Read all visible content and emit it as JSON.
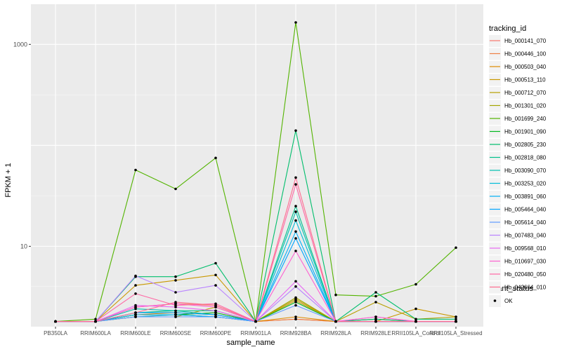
{
  "chart_data": {
    "type": "line",
    "title": "",
    "xlabel": "sample_name",
    "ylabel": "FPKM + 1",
    "yscale": "log10",
    "ylim": [
      1.6,
      2500
    ],
    "y_ticks": [
      10,
      1000
    ],
    "y_tick_labels": [
      "10",
      "1000"
    ],
    "grid": true,
    "background": "#ebebeb",
    "categories": [
      "PB350LA",
      "RRIM600LA",
      "RRIM600LE",
      "RRIM600SE",
      "RRIM600PE",
      "RRIM901LA",
      "RRIM928BA",
      "RRIM928LA",
      "RRIM928LE",
      "RRII105LA_Control",
      "RRII105LA_Stressed"
    ],
    "legend": {
      "position": "right",
      "title": "tracking_id",
      "status_title": "quant_status",
      "status_entries": [
        "OK"
      ]
    },
    "series": [
      {
        "name": "Hb_000141_070",
        "color": "#F8766D",
        "values": [
          1.8,
          1.8,
          2.0,
          2.1,
          2.2,
          1.8,
          1.9,
          1.8,
          1.9,
          1.8,
          1.8
        ]
      },
      {
        "name": "Hb_000446_100",
        "color": "#EE8043",
        "values": [
          1.8,
          1.8,
          2.5,
          2.7,
          2.6,
          1.8,
          1.9,
          1.8,
          1.8,
          1.8,
          1.8
        ]
      },
      {
        "name": "Hb_000503_040",
        "color": "#DE8C00",
        "values": [
          1.8,
          1.8,
          2.1,
          2.2,
          2.1,
          1.8,
          2.0,
          1.8,
          1.9,
          1.8,
          1.8
        ]
      },
      {
        "name": "Hb_000513_110",
        "color": "#C99800",
        "values": [
          1.8,
          1.8,
          4.1,
          4.6,
          5.2,
          1.8,
          2.9,
          1.8,
          1.8,
          2.4,
          2.0
        ]
      },
      {
        "name": "Hb_000712_070",
        "color": "#B79F00",
        "values": [
          1.8,
          1.8,
          2.0,
          2.0,
          2.5,
          1.8,
          3.0,
          1.8,
          2.8,
          1.9,
          2.0
        ]
      },
      {
        "name": "Hb_001301_020",
        "color": "#A3A500",
        "values": [
          1.8,
          1.8,
          2.1,
          2.1,
          2.0,
          1.8,
          3.1,
          1.8,
          1.9,
          1.8,
          1.8
        ]
      },
      {
        "name": "Hb_001699_240",
        "color": "#53B400",
        "values": [
          1.8,
          1.9,
          57,
          37,
          75,
          1.8,
          1650,
          3.3,
          3.2,
          4.2,
          9.7
        ]
      },
      {
        "name": "Hb_001901_090",
        "color": "#00B81F",
        "values": [
          1.8,
          1.8,
          2.1,
          2.1,
          2.2,
          1.8,
          2.8,
          1.8,
          1.8,
          1.8,
          1.8
        ]
      },
      {
        "name": "Hb_002805_230",
        "color": "#00BE6C",
        "values": [
          1.8,
          1.8,
          5.0,
          5.0,
          6.8,
          1.8,
          140,
          1.8,
          3.5,
          1.9,
          1.9
        ]
      },
      {
        "name": "Hb_002818_080",
        "color": "#00C08B",
        "values": [
          1.8,
          1.8,
          2.2,
          2.3,
          2.3,
          1.8,
          25,
          1.8,
          1.9,
          1.8,
          1.8
        ]
      },
      {
        "name": "Hb_003090_070",
        "color": "#00C0AF",
        "values": [
          1.8,
          1.8,
          2.4,
          2.3,
          2.1,
          1.8,
          22,
          1.8,
          1.8,
          1.8,
          1.8
        ]
      },
      {
        "name": "Hb_003253_020",
        "color": "#00BCD8",
        "values": [
          1.8,
          1.8,
          2.0,
          2.1,
          2.0,
          1.8,
          18,
          1.8,
          1.8,
          1.8,
          1.8
        ]
      },
      {
        "name": "Hb_003891_060",
        "color": "#00B0F6",
        "values": [
          1.8,
          1.8,
          2.1,
          2.1,
          2.0,
          1.8,
          14,
          1.8,
          1.8,
          1.8,
          1.8
        ]
      },
      {
        "name": "Hb_005464_040",
        "color": "#00A5FF",
        "values": [
          1.8,
          1.8,
          2.2,
          2.2,
          2.1,
          1.8,
          12,
          1.8,
          1.8,
          1.8,
          1.8
        ]
      },
      {
        "name": "Hb_005614_040",
        "color": "#619CFF",
        "values": [
          1.8,
          1.8,
          2.0,
          2.0,
          2.0,
          1.8,
          2.6,
          1.8,
          1.8,
          1.8,
          1.8
        ]
      },
      {
        "name": "Hb_007483_040",
        "color": "#B983FF",
        "values": [
          1.8,
          1.8,
          5.1,
          3.5,
          4.1,
          1.8,
          4.0,
          1.8,
          1.8,
          1.8,
          1.8
        ]
      },
      {
        "name": "Hb_009568_010",
        "color": "#E76BF3",
        "values": [
          1.8,
          1.8,
          2.6,
          2.5,
          2.3,
          1.8,
          4.5,
          1.8,
          2.0,
          1.8,
          1.8
        ]
      },
      {
        "name": "Hb_010697_030",
        "color": "#FD61D1",
        "values": [
          1.8,
          1.8,
          2.5,
          2.7,
          2.5,
          1.8,
          9.0,
          1.8,
          2.0,
          1.8,
          1.8
        ]
      },
      {
        "name": "Hb_020480_050",
        "color": "#FF67A4",
        "values": [
          1.8,
          1.8,
          3.4,
          2.6,
          2.7,
          1.8,
          41,
          1.8,
          1.8,
          1.8,
          1.8
        ]
      },
      {
        "name": "Hb_042664_010",
        "color": "#FF6C90",
        "values": [
          1.8,
          1.8,
          2.2,
          2.8,
          2.6,
          1.8,
          48,
          1.8,
          1.8,
          1.8,
          1.8
        ]
      }
    ]
  }
}
